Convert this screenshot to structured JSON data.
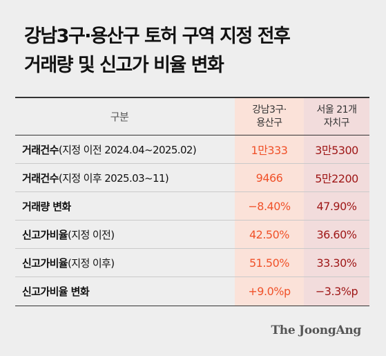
{
  "title": {
    "line1": "강남3구·용산구 토허 구역 지정 전후",
    "line2": "거래량 및 신고가 비율 변화"
  },
  "table": {
    "header": {
      "label": "구분",
      "col_a_line1": "강남3구·",
      "col_a_line2": "용산구",
      "col_b_line1": "서울 21개",
      "col_b_line2": "자치구"
    },
    "rows": [
      {
        "label_bold": "거래건수",
        "label_rest": "(지정 이전 2024.04~2025.02)",
        "a": "1만333",
        "b": "3만5300"
      },
      {
        "label_bold": "거래건수",
        "label_rest": "(지정 이후 2025.03~11)",
        "a": "9466",
        "b": "5만2200"
      },
      {
        "label_bold": "거래량 변화",
        "label_rest": "",
        "a": "−8.40%",
        "b": "47.90%"
      },
      {
        "label_bold": "신고가비율",
        "label_rest": "(지정 이전)",
        "a": "42.50%",
        "b": "36.60%"
      },
      {
        "label_bold": "신고가비율",
        "label_rest": "(지정 이후)",
        "a": "51.50%",
        "b": "33.30%"
      },
      {
        "label_bold": "신고가비율 변화",
        "label_rest": "",
        "a": "+9.0%p",
        "b": "−3.3%p"
      }
    ]
  },
  "brand": "The JoongAng",
  "colors": {
    "background": "#eeeeee",
    "col_a_bg": "#fbe2d9",
    "col_a_text": "#f0522a",
    "col_b_bg": "#f2dcdc",
    "col_b_text": "#9e1616"
  }
}
